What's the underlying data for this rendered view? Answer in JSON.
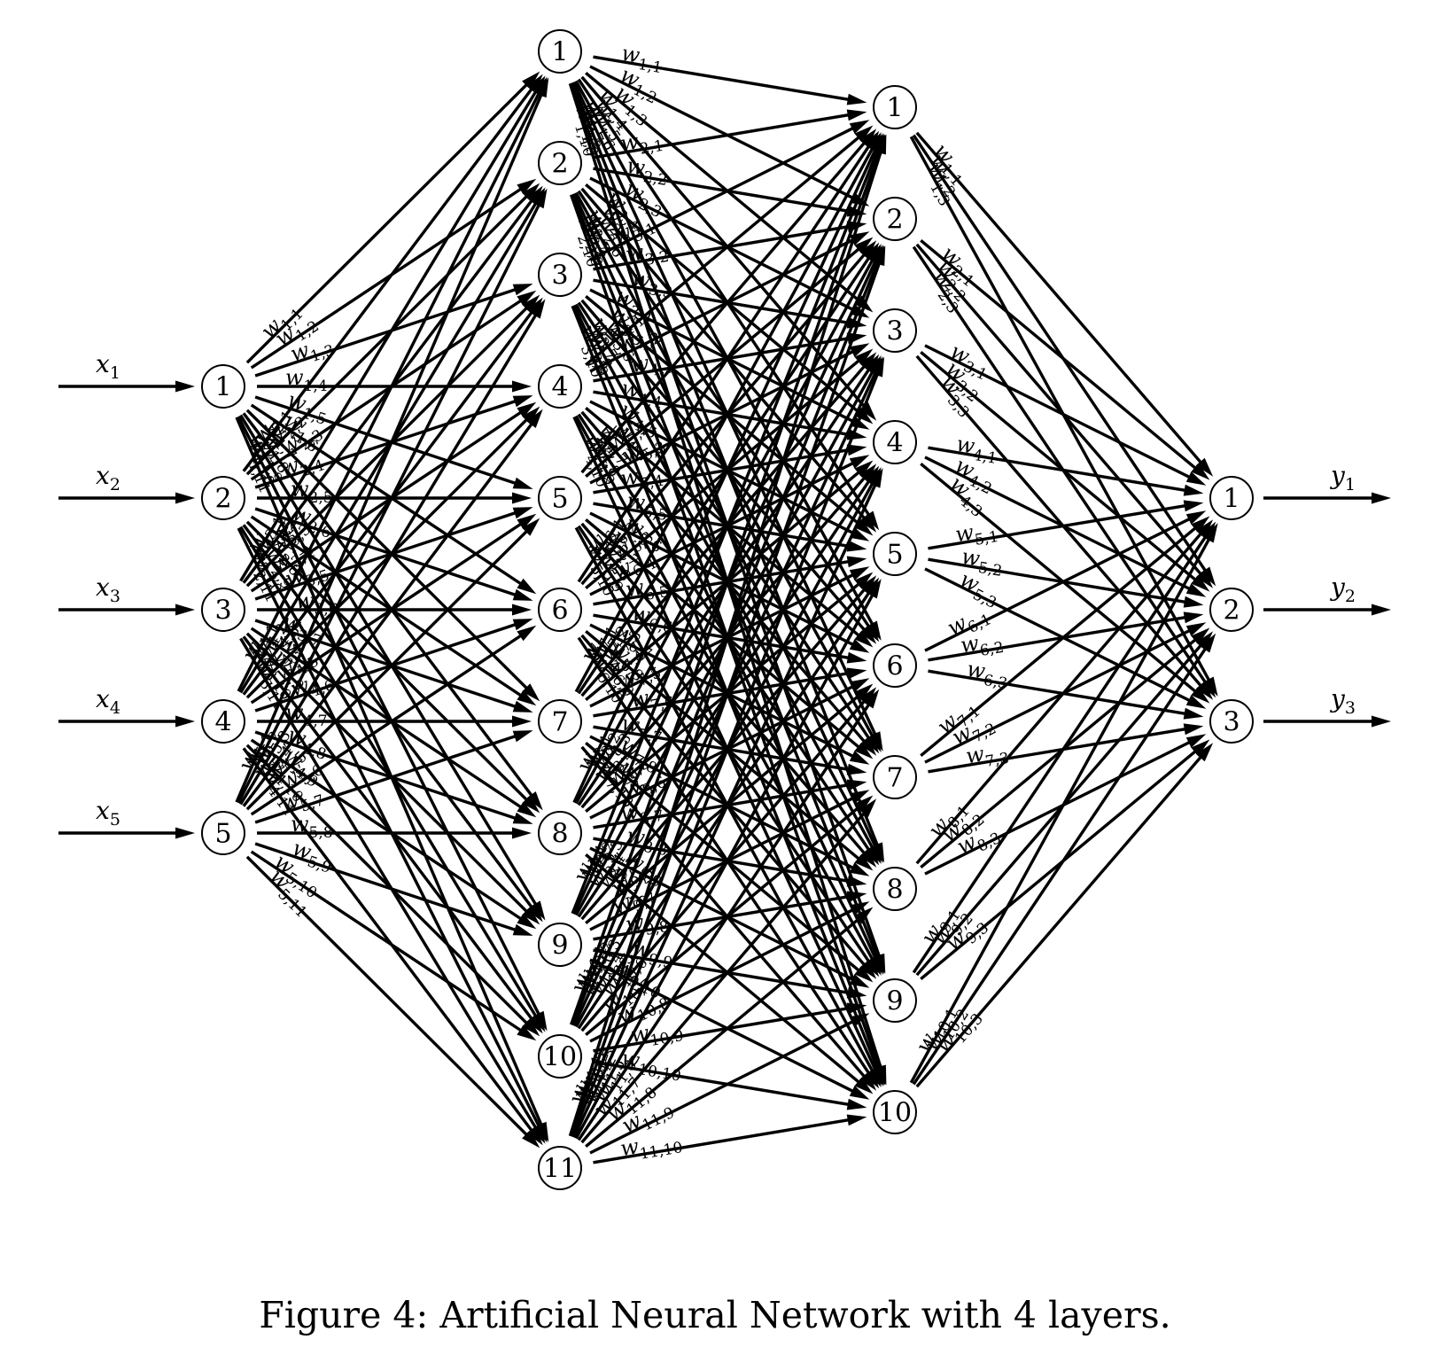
{
  "caption": "Figure 4: Artificial Neural Network with 4 layers.",
  "layers": [
    {
      "labels": [
        "1",
        "2",
        "3",
        "4",
        "5"
      ]
    },
    {
      "labels": [
        "1",
        "2",
        "3",
        "4",
        "5",
        "6",
        "7",
        "8",
        "9",
        "10",
        "11"
      ]
    },
    {
      "labels": [
        "1",
        "2",
        "3",
        "4",
        "5",
        "6",
        "7",
        "8",
        "9",
        "10"
      ]
    },
    {
      "labels": [
        "1",
        "2",
        "3"
      ]
    }
  ],
  "inputs": [
    {
      "var": "x",
      "sub": "1"
    },
    {
      "var": "x",
      "sub": "2"
    },
    {
      "var": "x",
      "sub": "3"
    },
    {
      "var": "x",
      "sub": "4"
    },
    {
      "var": "x",
      "sub": "5"
    }
  ],
  "outputs": [
    {
      "var": "y",
      "sub": "1"
    },
    {
      "var": "y",
      "sub": "2"
    },
    {
      "var": "y",
      "sub": "3"
    }
  ],
  "weight_symbol": "w"
}
